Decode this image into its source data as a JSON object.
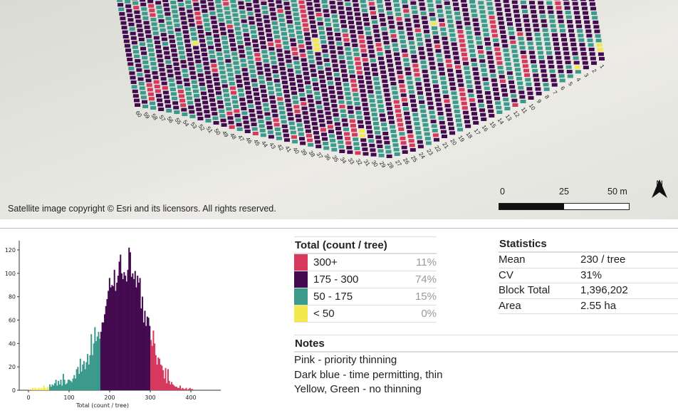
{
  "map": {
    "copyright": "Satellite image copyright © Esri and its licensors. All rights reserved.",
    "scale_labels": [
      "0",
      "25",
      "50 m"
    ],
    "north_label": "N",
    "row_labels": [
      "1",
      "2",
      "3",
      "4",
      "5",
      "6",
      "7",
      "8",
      "9",
      "10",
      "11",
      "12",
      "13",
      "14",
      "15",
      "16",
      "17",
      "18",
      "19",
      "20",
      "21",
      "22",
      "23",
      "24",
      "25",
      "26",
      "27",
      "28",
      "29",
      "30",
      "31",
      "32",
      "33",
      "34",
      "35",
      "36",
      "37",
      "38",
      "39",
      "40",
      "41",
      "42",
      "43",
      "44",
      "45",
      "46",
      "47",
      "48",
      "49",
      "50",
      "51",
      "52",
      "53",
      "54",
      "55",
      "56",
      "57",
      "58",
      "59",
      "60"
    ],
    "colors": {
      "pink": "#d6385e",
      "purple": "#440a4f",
      "teal": "#3b9a8b",
      "yellow": "#f3e84c"
    }
  },
  "legend": {
    "title": "Total (count / tree)",
    "items": [
      {
        "range": "300+",
        "pct": "11%",
        "color": "#d6385e"
      },
      {
        "range": "175 - 300",
        "pct": "74%",
        "color": "#440a4f"
      },
      {
        "range": "50 - 175",
        "pct": "15%",
        "color": "#3b9a8b"
      },
      {
        "range": "< 50",
        "pct": "0%",
        "color": "#f3e84c"
      }
    ]
  },
  "statistics": {
    "title": "Statistics",
    "rows": [
      {
        "key": "Mean",
        "value": "230  / tree"
      },
      {
        "key": "CV",
        "value": "31%"
      },
      {
        "key": "Block Total",
        "value": "1,396,202"
      },
      {
        "key": "Area",
        "value": "2.55 ha"
      }
    ]
  },
  "notes": {
    "title": "Notes",
    "lines": [
      "Pink - priority thinning",
      "Dark blue - time permitting, thin",
      "Yellow, Green - no thinning"
    ]
  },
  "chart_data": {
    "type": "bar",
    "title": "",
    "xlabel": "Total  (count / tree)",
    "ylabel": "",
    "bin_start": 0,
    "bin_width": 3,
    "xlim": [
      -25,
      475
    ],
    "ylim": [
      0,
      128
    ],
    "xticks": [
      0,
      100,
      200,
      300,
      400
    ],
    "yticks": [
      0,
      20,
      40,
      60,
      80,
      100,
      120
    ],
    "grid": false,
    "class_breaks": [
      {
        "min": 0,
        "max": 50,
        "color": "#f3e84c"
      },
      {
        "min": 50,
        "max": 175,
        "color": "#3b9a8b"
      },
      {
        "min": 175,
        "max": 300,
        "color": "#440a4f"
      },
      {
        "min": 300,
        "max": 1000,
        "color": "#d6385e"
      }
    ],
    "values": [
      1,
      0,
      1,
      2,
      1,
      2,
      1,
      1,
      2,
      1,
      2,
      1,
      4,
      2,
      1,
      3,
      2,
      5,
      3,
      5,
      4,
      6,
      9,
      4,
      8,
      5,
      9,
      4,
      14,
      9,
      5,
      6,
      9,
      9,
      8,
      7,
      10,
      13,
      10,
      18,
      20,
      14,
      27,
      16,
      22,
      25,
      18,
      24,
      31,
      22,
      30,
      48,
      30,
      40,
      54,
      42,
      46,
      50,
      44,
      50,
      58,
      58,
      65,
      72,
      78,
      85,
      96,
      88,
      90,
      89,
      103,
      85,
      92,
      98,
      110,
      116,
      100,
      95,
      101,
      98,
      93,
      103,
      122,
      118,
      97,
      100,
      95,
      102,
      88,
      98,
      92,
      96,
      70,
      80,
      58,
      68,
      55,
      63,
      62,
      55,
      43,
      38,
      51,
      40,
      30,
      22,
      28,
      27,
      22,
      21,
      17,
      10,
      19,
      6,
      18,
      8,
      5,
      7,
      5,
      4,
      3,
      3,
      2,
      2,
      4,
      1,
      2,
      1,
      1,
      2,
      0,
      1,
      2,
      1,
      1,
      0,
      0,
      0,
      0,
      0,
      0
    ]
  }
}
